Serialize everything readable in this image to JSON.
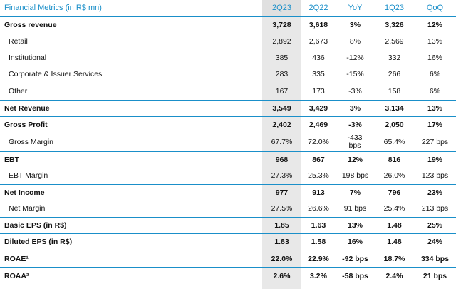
{
  "header": {
    "title": "Financial Metrics (in R$ mn)",
    "columns": [
      "2Q23",
      "2Q22",
      "YoY",
      "1Q23",
      "QoQ"
    ]
  },
  "rows": [
    {
      "label": "Gross revenue",
      "values": [
        "3,728",
        "3,618",
        "3%",
        "3,326",
        "12%"
      ]
    },
    {
      "label": "Retail",
      "values": [
        "2,892",
        "2,673",
        "8%",
        "2,569",
        "13%"
      ]
    },
    {
      "label": "Institutional",
      "values": [
        "385",
        "436",
        "-12%",
        "332",
        "16%"
      ]
    },
    {
      "label": "Corporate & Issuer Services",
      "values": [
        "283",
        "335",
        "-15%",
        "266",
        "6%"
      ]
    },
    {
      "label": "Other",
      "values": [
        "167",
        "173",
        "-3%",
        "158",
        "6%"
      ]
    },
    {
      "label": "Net Revenue",
      "values": [
        "3,549",
        "3,429",
        "3%",
        "3,134",
        "13%"
      ]
    },
    {
      "label": "Gross Profit",
      "values": [
        "2,402",
        "2,469",
        "-3%",
        "2,050",
        "17%"
      ]
    },
    {
      "label": "Gross Margin",
      "values": [
        "67.7%",
        "72.0%",
        "-433 bps",
        "65.4%",
        "227 bps"
      ]
    },
    {
      "label": "EBT",
      "values": [
        "968",
        "867",
        "12%",
        "816",
        "19%"
      ]
    },
    {
      "label": "EBT Margin",
      "values": [
        "27.3%",
        "25.3%",
        "198 bps",
        "26.0%",
        "123 bps"
      ]
    },
    {
      "label": "Net Income",
      "values": [
        "977",
        "913",
        "7%",
        "796",
        "23%"
      ]
    },
    {
      "label": "Net Margin",
      "values": [
        "27.5%",
        "26.6%",
        "91 bps",
        "25.4%",
        "213 bps"
      ]
    },
    {
      "label": "Basic EPS (in R$)",
      "values": [
        "1.85",
        "1.63",
        "13%",
        "1.48",
        "25%"
      ]
    },
    {
      "label": "Diluted EPS (in R$)",
      "values": [
        "1.83",
        "1.58",
        "16%",
        "1.48",
        "24%"
      ]
    },
    {
      "label": "ROAE¹",
      "values": [
        "22.0%",
        "22.9%",
        "-92 bps",
        "18.7%",
        "334 bps"
      ]
    },
    {
      "label": "ROAA²",
      "values": [
        "2.6%",
        "3.2%",
        "-58 bps",
        "2.4%",
        "21 bps"
      ]
    }
  ],
  "colors": {
    "accent": "#1a8fc9",
    "highlight_column": "#e8e8e8"
  }
}
